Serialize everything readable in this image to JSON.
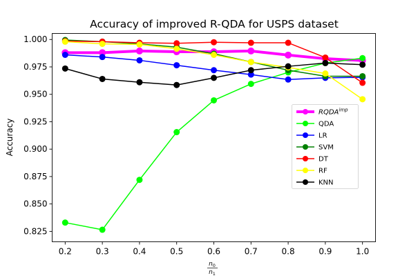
{
  "chart_data": {
    "type": "line",
    "title": "Accuracy of improved R-QDA for USPS dataset",
    "ylabel": "Accuracy",
    "xlabel": {
      "numerator": "n",
      "numerator_sub": "0",
      "denominator": "n",
      "denominator_sub": "1"
    },
    "x": [
      0.2,
      0.3,
      0.4,
      0.5,
      0.6,
      0.7,
      0.8,
      0.9,
      1.0
    ],
    "x_ticks": [
      "0.2",
      "0.3",
      "0.4",
      "0.5",
      "0.6",
      "0.7",
      "0.8",
      "0.9",
      "1.0"
    ],
    "xlim": [
      0.165,
      1.035
    ],
    "ylim": [
      0.8155,
      1.0055
    ],
    "y_ticks": [
      "0.825",
      "0.850",
      "0.875",
      "0.900",
      "0.925",
      "0.950",
      "0.975",
      "1.000"
    ],
    "y_tick_values": [
      0.825,
      0.85,
      0.875,
      0.9,
      0.925,
      0.95,
      0.975,
      1.0
    ],
    "grid": false,
    "legend_position": "center-right",
    "series": [
      {
        "name": "RQDA",
        "sup": "imp",
        "color": "#ff00ff",
        "width": "thick",
        "values": [
          0.988,
          0.988,
          0.9895,
          0.9888,
          0.9888,
          0.9895,
          0.9858,
          0.9825,
          0.9808
        ]
      },
      {
        "name": "QDA",
        "color": "#00ff00",
        "width": "normal",
        "values": [
          0.833,
          0.8265,
          0.872,
          0.9155,
          0.9445,
          0.9595,
          0.97,
          0.9785,
          0.983
        ]
      },
      {
        "name": "LR",
        "color": "#0000ff",
        "width": "normal",
        "values": [
          0.986,
          0.984,
          0.981,
          0.9765,
          0.972,
          0.968,
          0.9635,
          0.965,
          0.9655
        ]
      },
      {
        "name": "SVM",
        "color": "#008000",
        "width": "normal",
        "values": [
          0.9995,
          0.998,
          0.996,
          0.993,
          0.987,
          0.9795,
          0.972,
          0.9665,
          0.9665
        ]
      },
      {
        "name": "DT",
        "color": "#ff0000",
        "width": "normal",
        "values": [
          0.9985,
          0.998,
          0.997,
          0.9965,
          0.9975,
          0.997,
          0.997,
          0.9835,
          0.9605
        ]
      },
      {
        "name": "RF",
        "color": "#ffff00",
        "width": "normal",
        "values": [
          0.998,
          0.996,
          0.9955,
          0.9915,
          0.986,
          0.9795,
          0.9745,
          0.969,
          0.9455
        ]
      },
      {
        "name": "KNN",
        "color": "#000000",
        "width": "normal",
        "values": [
          0.9735,
          0.964,
          0.961,
          0.9585,
          0.965,
          0.972,
          0.9755,
          0.9785,
          0.977
        ]
      }
    ]
  }
}
